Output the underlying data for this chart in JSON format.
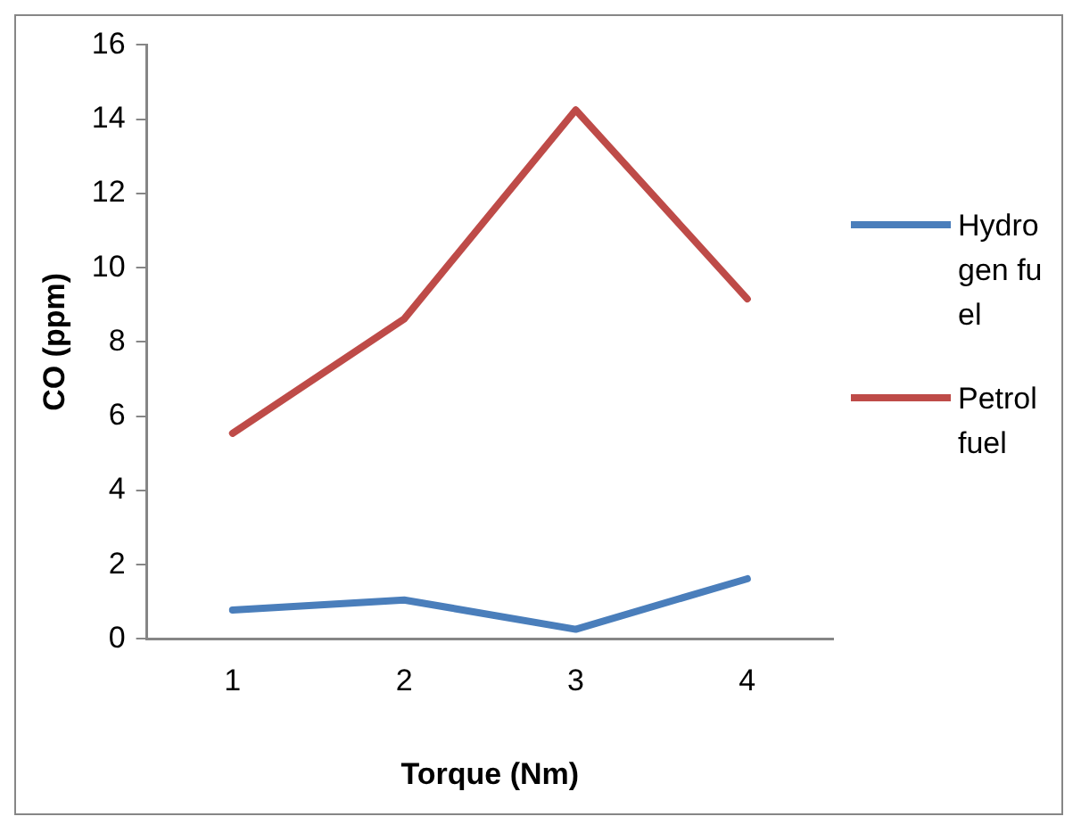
{
  "chart_data": {
    "type": "line",
    "xlabel": "Torque (Nm)",
    "ylabel": "CO (ppm)",
    "categories": [
      "1",
      "2",
      "3",
      "4"
    ],
    "series": [
      {
        "name": "Hydrogen fuel",
        "color": "#4a7ebb",
        "values": [
          0.78,
          1.05,
          0.26,
          1.62
        ]
      },
      {
        "name": "Petrol fuel",
        "color": "#be4b48",
        "values": [
          5.54,
          8.62,
          14.25,
          9.16
        ]
      }
    ],
    "ylim": [
      0,
      16
    ],
    "yticks": [
      0,
      2,
      4,
      6,
      8,
      10,
      12,
      14,
      16
    ],
    "grid": false,
    "legend": "right",
    "marker": "none",
    "line_style": "solid"
  }
}
